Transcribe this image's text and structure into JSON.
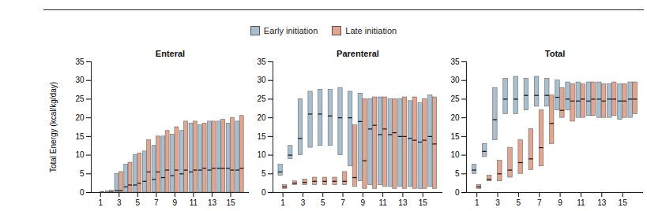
{
  "chart_data": [
    {
      "type": "bar",
      "title": "Enteral",
      "ylabel": "Total Energy (kcal/kg/day)",
      "legend": "top",
      "x": [
        1,
        2,
        3,
        4,
        5,
        6,
        7,
        8,
        9,
        10,
        11,
        12,
        13,
        14,
        15,
        16
      ],
      "xlim": [
        0,
        17
      ],
      "xticks": [
        1,
        3,
        5,
        7,
        9,
        11,
        13,
        15
      ],
      "ylim": [
        0,
        35
      ],
      "yticks": [
        0,
        5,
        10,
        15,
        20,
        25,
        30,
        35
      ],
      "series": [
        {
          "name": "Early initiation",
          "color": "#a8bfd0",
          "low": [
            0,
            0,
            0,
            0,
            0,
            0,
            0,
            0,
            0,
            0,
            0,
            0,
            0,
            0,
            0,
            0
          ],
          "median": [
            0,
            0,
            0.5,
            1.5,
            2,
            3,
            3.5,
            4,
            4.5,
            5,
            5.5,
            6,
            6,
            6.5,
            6.5,
            6
          ],
          "high": [
            0,
            0.3,
            5,
            7.5,
            10,
            11,
            12.5,
            15,
            15.5,
            16.5,
            18.5,
            18,
            19,
            19,
            18.5,
            19
          ]
        },
        {
          "name": "Late initiation",
          "color": "#e2a590",
          "low": [
            0,
            0,
            0,
            0,
            0,
            0,
            0,
            0,
            0,
            0,
            0,
            0,
            0,
            0,
            0,
            0
          ],
          "median": [
            0,
            0.1,
            0.5,
            2,
            2.5,
            5.5,
            5.5,
            6,
            6,
            6,
            6,
            6.5,
            6.5,
            6.5,
            6,
            6.5
          ],
          "high": [
            0.2,
            0.5,
            5.5,
            8,
            10.5,
            14,
            15,
            16.5,
            17.5,
            19,
            19,
            18.5,
            19,
            19.5,
            20,
            20.5
          ]
        }
      ]
    },
    {
      "type": "bar",
      "title": "Parenteral",
      "legend": "top",
      "x": [
        1,
        2,
        3,
        4,
        5,
        6,
        7,
        8,
        9,
        10,
        11,
        12,
        13,
        14,
        15,
        16
      ],
      "xlim": [
        0,
        17
      ],
      "xticks": [
        1,
        3,
        5,
        7,
        9,
        11,
        13,
        15
      ],
      "ylim": [
        0,
        35
      ],
      "yticks": [
        0,
        5,
        10,
        15,
        20,
        25,
        30,
        35
      ],
      "series": [
        {
          "name": "Early initiation",
          "color": "#a8bfd0",
          "low": [
            4.5,
            9,
            10,
            12,
            12.5,
            12.5,
            10,
            7,
            3,
            2,
            2,
            1.5,
            1.5,
            1.5,
            1,
            1.5
          ],
          "median": [
            5.5,
            10,
            14.5,
            21,
            21,
            20.5,
            20,
            20,
            19,
            17,
            15.5,
            15.5,
            15,
            14.5,
            13.5,
            15
          ],
          "high": [
            7.5,
            12.5,
            25,
            27,
            27.5,
            27.5,
            28,
            27,
            26.5,
            25,
            25.5,
            25,
            25,
            24.5,
            24,
            26
          ]
        },
        {
          "name": "Late initiation",
          "color": "#e2a590",
          "low": [
            1,
            2,
            2,
            2,
            2,
            2,
            2,
            1.5,
            1,
            1,
            1.5,
            1,
            1,
            1,
            1,
            1
          ],
          "median": [
            1.5,
            2.5,
            2.7,
            3,
            3,
            3,
            3,
            4,
            8.5,
            18,
            17,
            16,
            15,
            14,
            14,
            13
          ],
          "high": [
            2,
            3,
            3.5,
            4,
            4,
            4,
            5.5,
            18,
            25,
            25.5,
            25.5,
            25,
            25.5,
            25.5,
            25,
            25.5
          ]
        }
      ]
    },
    {
      "type": "bar",
      "title": "Total",
      "legend": "top",
      "x": [
        1,
        2,
        3,
        4,
        5,
        6,
        7,
        8,
        9,
        10,
        11,
        12,
        13,
        14,
        15,
        16
      ],
      "xlim": [
        0,
        17
      ],
      "xticks": [
        1,
        3,
        5,
        7,
        9,
        11,
        13,
        15
      ],
      "ylim": [
        0,
        35
      ],
      "yticks": [
        0,
        5,
        10,
        15,
        20,
        25,
        30,
        35
      ],
      "series": [
        {
          "name": "Early initiation",
          "color": "#a8bfd0",
          "low": [
            5,
            9.5,
            14,
            21,
            21,
            22,
            23,
            23,
            22,
            22,
            20,
            20.5,
            20,
            20,
            19.5,
            20
          ],
          "median": [
            6,
            11,
            19.5,
            25,
            25,
            26,
            26,
            26,
            25.5,
            25,
            24.5,
            24.5,
            25,
            25,
            24.5,
            25
          ],
          "high": [
            7.5,
            13,
            28,
            30.5,
            31,
            30.5,
            31,
            30.5,
            30,
            29.5,
            29.5,
            29.5,
            29.5,
            29,
            29,
            29.5
          ]
        },
        {
          "name": "Late initiation",
          "color": "#e2a590",
          "low": [
            1,
            3,
            3,
            4,
            5,
            6,
            7,
            13,
            20,
            19,
            20,
            20.5,
            20,
            20.5,
            20,
            21
          ],
          "median": [
            1.5,
            3.5,
            5,
            6,
            8,
            9,
            12,
            18.5,
            22,
            24.5,
            25,
            25,
            24.5,
            25,
            24.5,
            25
          ],
          "high": [
            2,
            4.5,
            8.5,
            12,
            14,
            17,
            22,
            26,
            28,
            29,
            29,
            29.5,
            29,
            29.5,
            29,
            29.5
          ]
        }
      ]
    }
  ]
}
